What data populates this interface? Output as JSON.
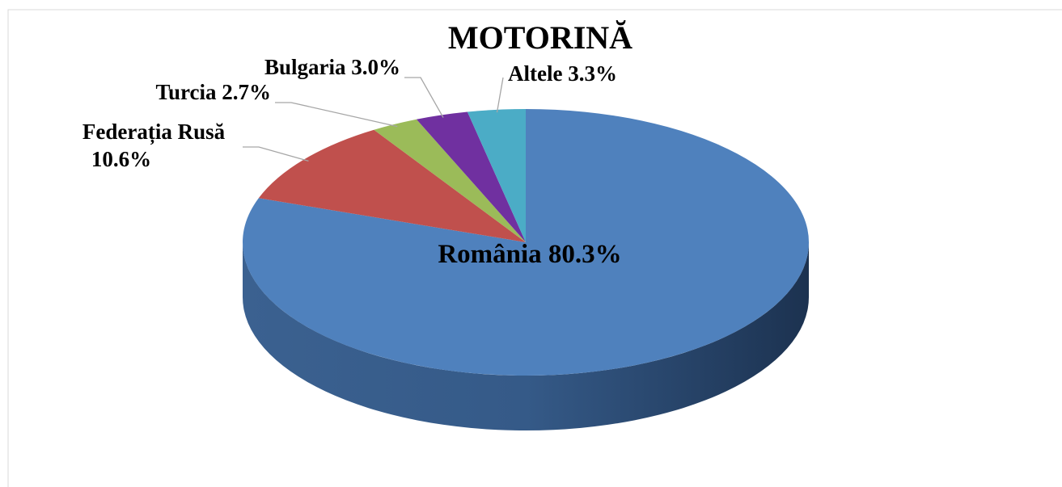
{
  "chart_data": {
    "type": "pie",
    "title": "MOTORINĂ",
    "categories": [
      "România",
      "Federația Rusă",
      "Turcia",
      "Bulgaria",
      "Altele"
    ],
    "values": [
      80.3,
      10.6,
      2.7,
      3.0,
      3.3
    ],
    "value_labels": [
      "80.3%",
      "10.6%",
      "2.7%",
      "3.0%",
      "3.3%"
    ],
    "colors": [
      "#4f81bd",
      "#c0504d",
      "#9bbb59",
      "#7030a0",
      "#4bacc6"
    ]
  }
}
